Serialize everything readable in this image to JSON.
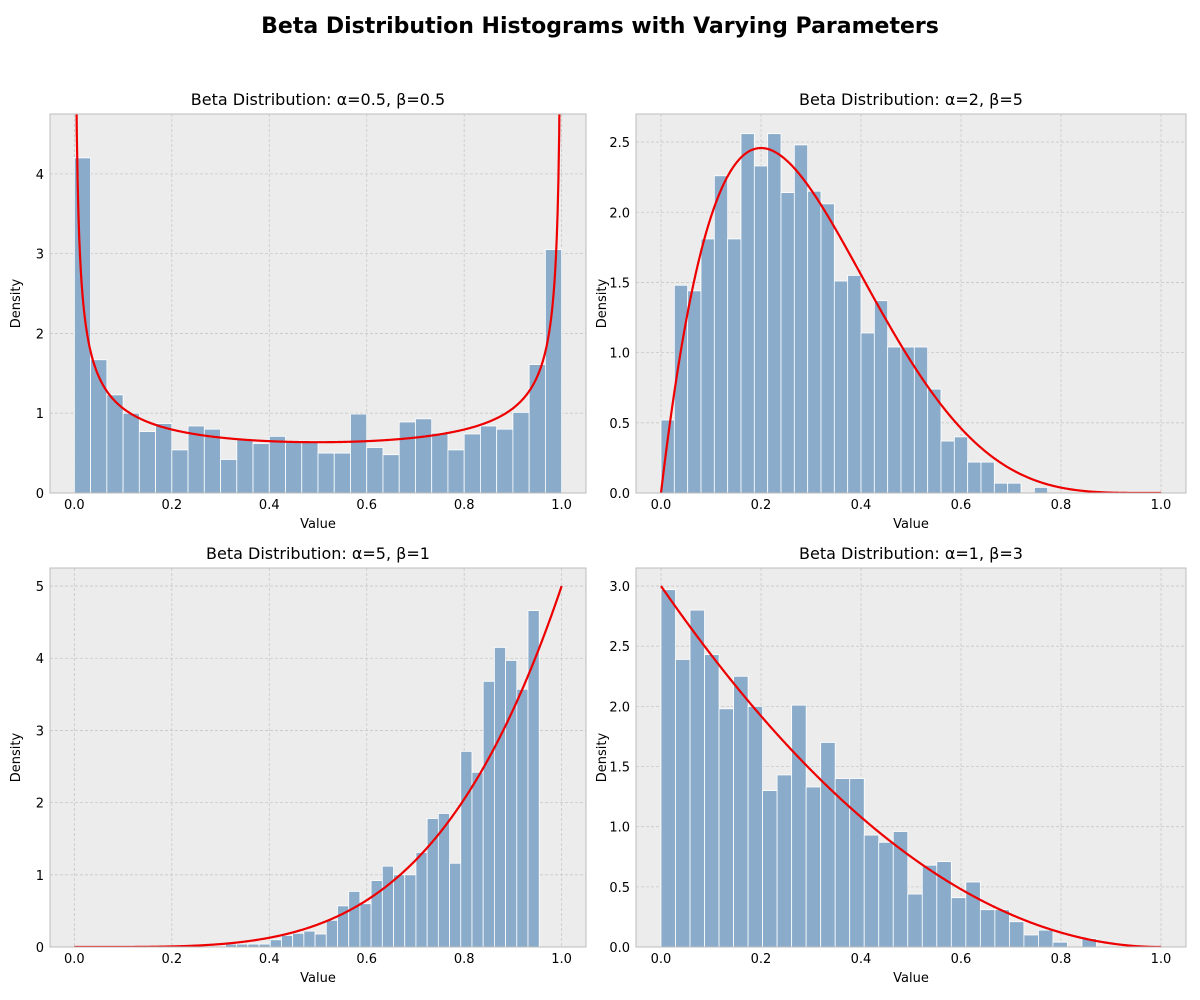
{
  "figure": {
    "suptitle": "Beta Distribution Histograms with Varying Parameters"
  },
  "colors": {
    "plot_background": "#ececec",
    "grid": "#c8c8c8",
    "bar_fill": "#8aacca",
    "bar_edge": "#ffffff",
    "curve": "#ee0000",
    "spine": "#bcbcbc"
  },
  "chart_data": [
    {
      "type": "bar",
      "title": "Beta Distribution: α=0.5, β=0.5",
      "alpha": 0.5,
      "beta": 0.5,
      "xlabel": "Value",
      "ylabel": "Density",
      "xlim": [
        -0.05,
        1.05
      ],
      "ylim": [
        0,
        4.75
      ],
      "xticks": [
        0.0,
        0.2,
        0.4,
        0.6,
        0.8,
        1.0
      ],
      "xtick_labels": [
        "0.0",
        "0.2",
        "0.4",
        "0.6",
        "0.8",
        "1.0"
      ],
      "yticks": [
        0,
        1,
        2,
        3,
        4
      ],
      "ytick_labels": [
        "0",
        "1",
        "2",
        "3",
        "4"
      ],
      "grid": true,
      "bin_edges": [
        0.0,
        1.0
      ],
      "bin_count": 30,
      "values": [
        4.2,
        1.67,
        1.23,
        1.0,
        0.77,
        0.87,
        0.54,
        0.84,
        0.8,
        0.42,
        0.67,
        0.62,
        0.71,
        0.65,
        0.65,
        0.5,
        0.5,
        0.99,
        0.57,
        0.48,
        0.89,
        0.93,
        0.75,
        0.54,
        0.74,
        0.84,
        0.8,
        1.01,
        1.61,
        3.05
      ],
      "curve": "beta pdf"
    },
    {
      "type": "bar",
      "title": "Beta Distribution: α=2, β=5",
      "alpha": 2,
      "beta": 5,
      "xlabel": "Value",
      "ylabel": "Density",
      "xlim": [
        -0.05,
        1.05
      ],
      "ylim": [
        0,
        2.7
      ],
      "xticks": [
        0.0,
        0.2,
        0.4,
        0.6,
        0.8,
        1.0
      ],
      "xtick_labels": [
        "0.0",
        "0.2",
        "0.4",
        "0.6",
        "0.8",
        "1.0"
      ],
      "yticks": [
        0.0,
        0.5,
        1.0,
        1.5,
        2.0,
        2.5
      ],
      "ytick_labels": [
        "0.0",
        "0.5",
        "1.0",
        "1.5",
        "2.0",
        "2.5"
      ],
      "grid": true,
      "bin_edges": [
        0.0,
        0.8
      ],
      "bin_count": 30,
      "values": [
        0.52,
        1.48,
        1.44,
        1.81,
        2.26,
        1.81,
        2.56,
        2.33,
        2.56,
        2.14,
        2.48,
        2.15,
        2.06,
        1.51,
        1.55,
        1.14,
        1.37,
        1.04,
        1.04,
        1.04,
        0.74,
        0.37,
        0.4,
        0.22,
        0.22,
        0.07,
        0.07,
        0.0,
        0.04,
        0.0
      ],
      "curve": "beta pdf"
    },
    {
      "type": "bar",
      "title": "Beta Distribution: α=5, β=1",
      "alpha": 5,
      "beta": 1,
      "xlabel": "Value",
      "ylabel": "Density",
      "xlim": [
        -0.05,
        1.05
      ],
      "ylim": [
        0,
        5.25
      ],
      "xticks": [
        0.0,
        0.2,
        0.4,
        0.6,
        0.8,
        1.0
      ],
      "xtick_labels": [
        "0.0",
        "0.2",
        "0.4",
        "0.6",
        "0.8",
        "1.0"
      ],
      "yticks": [
        0,
        1,
        2,
        3,
        4,
        5
      ],
      "ytick_labels": [
        "0",
        "1",
        "2",
        "3",
        "4",
        "5"
      ],
      "grid": true,
      "bin_edges": [
        0.31,
        1.0
      ],
      "bin_count": 30,
      "values": [
        0.04,
        0.04,
        0.04,
        0.04,
        0.1,
        0.16,
        0.19,
        0.22,
        0.18,
        0.37,
        0.57,
        0.77,
        0.6,
        0.92,
        1.12,
        1.0,
        1.0,
        1.31,
        1.78,
        1.85,
        1.16,
        2.71,
        2.42,
        3.68,
        4.15,
        3.97,
        3.57,
        4.66,
        0.0,
        0.0
      ],
      "curve": "beta pdf"
    },
    {
      "type": "bar",
      "title": "Beta Distribution: α=1, β=3",
      "alpha": 1,
      "beta": 3,
      "xlabel": "Value",
      "ylabel": "Density",
      "xlim": [
        -0.05,
        1.05
      ],
      "ylim": [
        0,
        3.15
      ],
      "xticks": [
        0.0,
        0.2,
        0.4,
        0.6,
        0.8,
        1.0
      ],
      "xtick_labels": [
        "0.0",
        "0.2",
        "0.4",
        "0.6",
        "0.8",
        "1.0"
      ],
      "yticks": [
        0.0,
        0.5,
        1.0,
        1.5,
        2.0,
        2.5,
        3.0
      ],
      "ytick_labels": [
        "0.0",
        "0.5",
        "1.0",
        "1.5",
        "2.0",
        "2.5",
        "3.0"
      ],
      "grid": true,
      "bin_edges": [
        0.0,
        0.9
      ],
      "bin_count": 31,
      "values": [
        2.97,
        2.39,
        2.8,
        2.43,
        1.98,
        2.25,
        2.0,
        1.3,
        1.43,
        2.01,
        1.33,
        1.7,
        1.4,
        1.4,
        0.93,
        0.87,
        0.96,
        0.44,
        0.68,
        0.71,
        0.41,
        0.54,
        0.31,
        0.31,
        0.21,
        0.1,
        0.14,
        0.04,
        0.0,
        0.07,
        0.0
      ],
      "curve": "beta pdf"
    }
  ]
}
